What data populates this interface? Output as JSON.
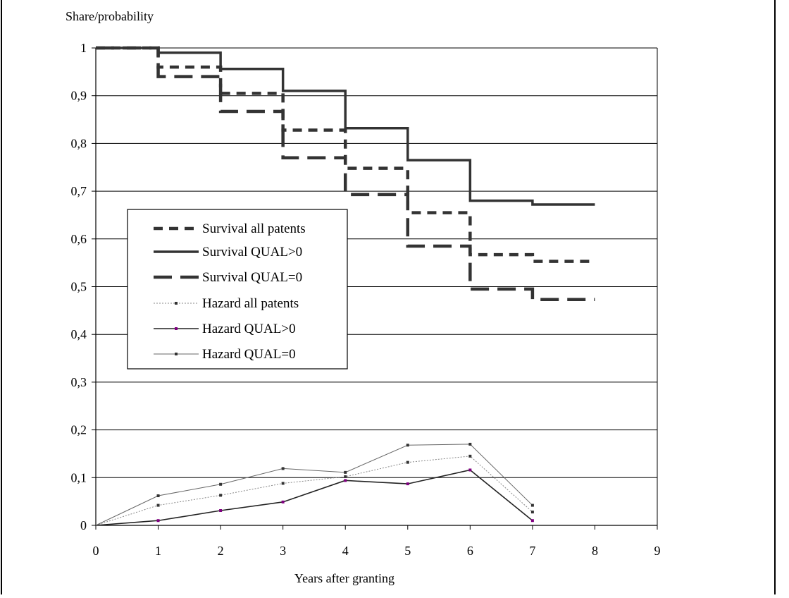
{
  "chart_data": {
    "type": "line",
    "title": "",
    "ylabel": "Share/probability",
    "xlabel": "Years after granting",
    "xlim": [
      0,
      9
    ],
    "ylim": [
      0,
      1
    ],
    "x_ticks": [
      0,
      1,
      2,
      3,
      4,
      5,
      6,
      7,
      8,
      9
    ],
    "x_tick_labels": [
      "0",
      "1",
      "2",
      "3",
      "4",
      "5",
      "6",
      "7",
      "8",
      "9"
    ],
    "y_ticks": [
      0,
      0.1,
      0.2,
      0.3,
      0.4,
      0.5,
      0.6,
      0.7,
      0.8,
      0.9,
      1
    ],
    "y_tick_labels": [
      "0",
      "0,1",
      "0,2",
      "0,3",
      "0,4",
      "0,5",
      "0,6",
      "0,7",
      "0,8",
      "0,9",
      "1"
    ],
    "grid": "horizontal",
    "legend_position": "left-middle",
    "series": [
      {
        "name": "Survival all patents",
        "kind": "step",
        "style": "short-dash",
        "color": "#333333",
        "x": [
          0,
          1,
          2,
          3,
          4,
          5,
          6,
          7,
          8
        ],
        "values": [
          1.0,
          0.96,
          0.905,
          0.828,
          0.748,
          0.655,
          0.567,
          0.553,
          0.553
        ]
      },
      {
        "name": "Survival QUAL>0",
        "kind": "step",
        "style": "solid",
        "color": "#333333",
        "x": [
          0,
          1,
          2,
          3,
          4,
          5,
          6,
          7,
          8
        ],
        "values": [
          1.0,
          0.99,
          0.956,
          0.91,
          0.832,
          0.765,
          0.68,
          0.672,
          0.672
        ]
      },
      {
        "name": "Survival QUAL=0",
        "kind": "step",
        "style": "long-dash",
        "color": "#333333",
        "x": [
          0,
          1,
          2,
          3,
          4,
          5,
          6,
          7,
          8
        ],
        "values": [
          1.0,
          0.94,
          0.867,
          0.77,
          0.693,
          0.585,
          0.495,
          0.473,
          0.473
        ]
      },
      {
        "name": "Hazard all patents",
        "kind": "line",
        "style": "thin-dotted",
        "color": "#888888",
        "x": [
          0,
          1,
          2,
          3,
          4,
          5,
          6,
          7
        ],
        "values": [
          0,
          0.042,
          0.063,
          0.088,
          0.102,
          0.132,
          0.145,
          0.028
        ]
      },
      {
        "name": "Hazard QUAL>0",
        "kind": "line",
        "style": "solid",
        "color": "#222222",
        "marker_color": "#800080",
        "x": [
          0,
          1,
          2,
          3,
          4,
          5,
          6,
          7
        ],
        "values": [
          0,
          0.01,
          0.031,
          0.049,
          0.094,
          0.087,
          0.116,
          0.01
        ]
      },
      {
        "name": "Hazard QUAL=0",
        "kind": "line",
        "style": "thin-solid",
        "color": "#666666",
        "x": [
          0,
          1,
          2,
          3,
          4,
          5,
          6,
          7
        ],
        "values": [
          0,
          0.062,
          0.086,
          0.119,
          0.111,
          0.168,
          0.17,
          0.042
        ]
      }
    ]
  }
}
